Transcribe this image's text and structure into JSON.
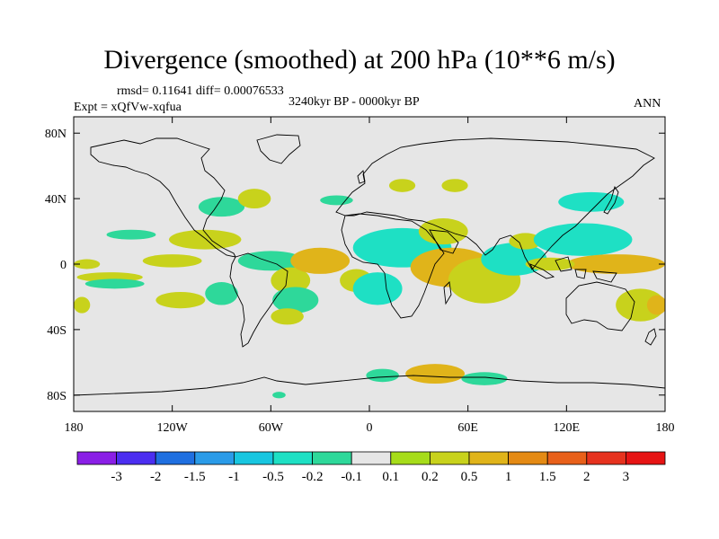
{
  "header": {
    "title": "Divergence (smoothed) at 200 hPa (10**6 m/s)",
    "stats": "rmsd= 0.11641 diff= 0.00076533",
    "period": "3240kyr BP - 0000kyr BP",
    "experiment": "Expt = xQfVw-xqfua",
    "season": "ANN"
  },
  "chart_data": {
    "type": "heatmap",
    "title": "Divergence (smoothed) at 200 hPa (10**6 m/s)",
    "xlabel": "",
    "ylabel": "",
    "x_range": [
      -180,
      180
    ],
    "y_range": [
      -90,
      90
    ],
    "x_ticks": [
      {
        "value": -180,
        "label": "180"
      },
      {
        "value": -120,
        "label": "120W"
      },
      {
        "value": -60,
        "label": "60W"
      },
      {
        "value": 0,
        "label": "0"
      },
      {
        "value": 60,
        "label": "60E"
      },
      {
        "value": 120,
        "label": "120E"
      },
      {
        "value": 180,
        "label": "180"
      }
    ],
    "y_ticks": [
      {
        "value": 80,
        "label": "80N"
      },
      {
        "value": 40,
        "label": "40N"
      },
      {
        "value": 0,
        "label": "0"
      },
      {
        "value": -40,
        "label": "40S"
      },
      {
        "value": -80,
        "label": "80S"
      }
    ],
    "levels": [
      -3,
      -2,
      -1.5,
      -1,
      -0.5,
      -0.2,
      -0.1,
      0.1,
      0.2,
      0.5,
      1,
      1.5,
      2,
      3
    ],
    "colorbar_labels": [
      "-3",
      "-2",
      "-1.5",
      "-1",
      "-0.5",
      "-0.2",
      "-0.1",
      "0.1",
      "0.2",
      "0.5",
      "1",
      "1.5",
      "2",
      "3"
    ],
    "colors": [
      "#8a1fe6",
      "#4b2ef0",
      "#1f6fe0",
      "#2a9be8",
      "#18c6e0",
      "#1ee0c4",
      "#2ed89a",
      "#e6e6e6",
      "#a6dc1a",
      "#c8d21c",
      "#e0b41a",
      "#e48a14",
      "#e8601a",
      "#e6321e",
      "#e61414"
    ],
    "regions": [
      {
        "lon": 20,
        "lat": 48,
        "rx": 8,
        "ry": 4,
        "value": 0.3
      },
      {
        "lon": 52,
        "lat": 48,
        "rx": 8,
        "ry": 4,
        "value": 0.3
      },
      {
        "lon": -20,
        "lat": 39,
        "rx": 10,
        "ry": 3,
        "value": -0.15
      },
      {
        "lon": -90,
        "lat": 35,
        "rx": 14,
        "ry": 6,
        "value": -0.15
      },
      {
        "lon": -70,
        "lat": 40,
        "rx": 10,
        "ry": 6,
        "value": 0.3
      },
      {
        "lon": -100,
        "lat": 15,
        "rx": 22,
        "ry": 6,
        "value": 0.2
      },
      {
        "lon": -145,
        "lat": 18,
        "rx": 15,
        "ry": 3,
        "value": -0.15
      },
      {
        "lon": -120,
        "lat": 2,
        "rx": 18,
        "ry": 4,
        "value": 0.3
      },
      {
        "lon": -158,
        "lat": -8,
        "rx": 20,
        "ry": 3,
        "value": 0.2
      },
      {
        "lon": -172,
        "lat": 0,
        "rx": 8,
        "ry": 3,
        "value": 0.3
      },
      {
        "lon": -155,
        "lat": -12,
        "rx": 18,
        "ry": 3,
        "value": -0.15
      },
      {
        "lon": -175,
        "lat": -25,
        "rx": 5,
        "ry": 5,
        "value": 0.2
      },
      {
        "lon": -115,
        "lat": -22,
        "rx": 15,
        "ry": 5,
        "value": 0.2
      },
      {
        "lon": -90,
        "lat": -18,
        "rx": 10,
        "ry": 7,
        "value": -0.15
      },
      {
        "lon": -60,
        "lat": 2,
        "rx": 20,
        "ry": 6,
        "value": -0.15
      },
      {
        "lon": -48,
        "lat": -10,
        "rx": 12,
        "ry": 8,
        "value": 0.2
      },
      {
        "lon": -45,
        "lat": -22,
        "rx": 14,
        "ry": 8,
        "value": -0.15
      },
      {
        "lon": -50,
        "lat": -32,
        "rx": 10,
        "ry": 5,
        "value": 0.2
      },
      {
        "lon": -30,
        "lat": 2,
        "rx": 18,
        "ry": 8,
        "value": 0.5
      },
      {
        "lon": -8,
        "lat": -10,
        "rx": 10,
        "ry": 7,
        "value": 0.2
      },
      {
        "lon": 20,
        "lat": 10,
        "rx": 30,
        "ry": 12,
        "value": -0.3
      },
      {
        "lon": 45,
        "lat": 20,
        "rx": 15,
        "ry": 8,
        "value": 0.3
      },
      {
        "lon": 5,
        "lat": -15,
        "rx": 15,
        "ry": 10,
        "value": -0.3
      },
      {
        "lon": 50,
        "lat": -2,
        "rx": 25,
        "ry": 12,
        "value": 0.5
      },
      {
        "lon": 70,
        "lat": -10,
        "rx": 22,
        "ry": 14,
        "value": 0.3
      },
      {
        "lon": 88,
        "lat": 3,
        "rx": 20,
        "ry": 10,
        "value": -0.3
      },
      {
        "lon": 95,
        "lat": 14,
        "rx": 10,
        "ry": 5,
        "value": 0.3
      },
      {
        "lon": 130,
        "lat": 15,
        "rx": 30,
        "ry": 10,
        "value": -0.3
      },
      {
        "lon": 135,
        "lat": 38,
        "rx": 20,
        "ry": 6,
        "value": -0.3
      },
      {
        "lon": 150,
        "lat": 0,
        "rx": 30,
        "ry": 6,
        "value": 0.5
      },
      {
        "lon": 110,
        "lat": 0,
        "rx": 15,
        "ry": 4,
        "value": 0.2
      },
      {
        "lon": 165,
        "lat": -25,
        "rx": 15,
        "ry": 10,
        "value": 0.2
      },
      {
        "lon": 175,
        "lat": -25,
        "rx": 6,
        "ry": 6,
        "value": 0.5
      },
      {
        "lon": 40,
        "lat": -67,
        "rx": 18,
        "ry": 6,
        "value": 0.5
      },
      {
        "lon": 8,
        "lat": -68,
        "rx": 10,
        "ry": 4,
        "value": -0.15
      },
      {
        "lon": 70,
        "lat": -70,
        "rx": 14,
        "ry": 4,
        "value": -0.15
      },
      {
        "lon": -55,
        "lat": -80,
        "rx": 4,
        "ry": 2,
        "value": -0.15
      }
    ]
  }
}
